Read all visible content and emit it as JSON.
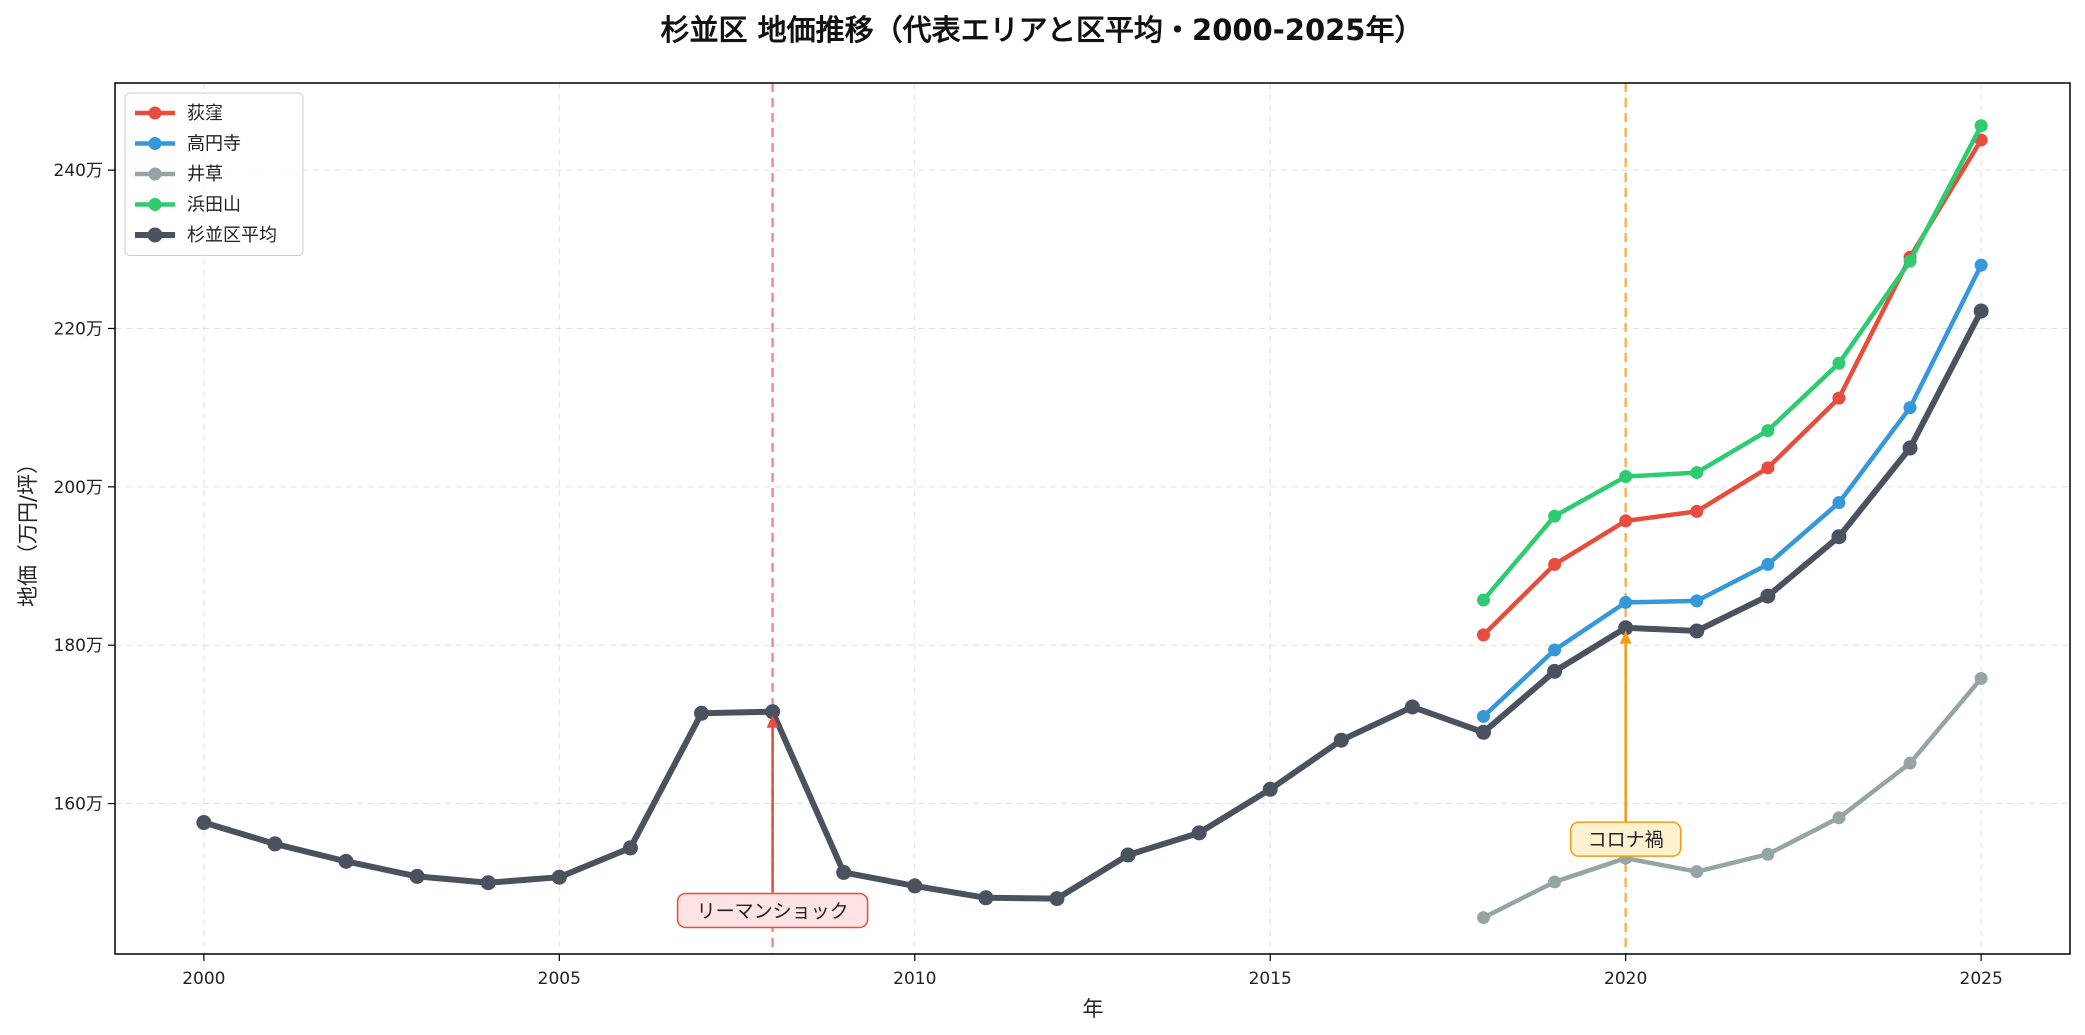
{
  "chart_data": {
    "type": "line",
    "title": "杉並区 地価推移（代表エリアと区平均・2000-2025年）",
    "xlabel": "年",
    "ylabel": "地価（万円/坪）",
    "xlim": [
      1998.75,
      2026.25
    ],
    "ylim": [
      1410000,
      2510000
    ],
    "x_ticks": [
      2000,
      2005,
      2010,
      2015,
      2020,
      2025
    ],
    "x_tick_labels": [
      "2000",
      "2005",
      "2010",
      "2015",
      "2020",
      "2025"
    ],
    "y_ticks": [
      1600000,
      1800000,
      2000000,
      2200000,
      2400000
    ],
    "y_tick_labels": [
      "160万",
      "180万",
      "200万",
      "220万",
      "240万"
    ],
    "grid": true,
    "legend_position": "top-left",
    "series": [
      {
        "name": "荻窪",
        "color": "#e74c3c",
        "x": [
          2018,
          2019,
          2020,
          2021,
          2022,
          2023,
          2024,
          2025
        ],
        "y": [
          1813000,
          1902000,
          1957000,
          1969000,
          2024000,
          2112000,
          2290000,
          2438000
        ]
      },
      {
        "name": "高円寺",
        "color": "#3498db",
        "x": [
          2018,
          2019,
          2020,
          2021,
          2022,
          2023,
          2024,
          2025
        ],
        "y": [
          1710000,
          1794000,
          1854000,
          1856000,
          1902000,
          1980000,
          2100000,
          2280000
        ]
      },
      {
        "name": "井草",
        "color": "#95a5a6",
        "x": [
          2018,
          2019,
          2020,
          2021,
          2022,
          2023,
          2024,
          2025
        ],
        "y": [
          1456000,
          1501000,
          1531000,
          1514000,
          1536000,
          1582000,
          1651000,
          1758000
        ]
      },
      {
        "name": "浜田山",
        "color": "#2ecc71",
        "x": [
          2018,
          2019,
          2020,
          2021,
          2022,
          2023,
          2024,
          2025
        ],
        "y": [
          1857000,
          1963000,
          2013000,
          2018000,
          2071000,
          2156000,
          2285000,
          2456000
        ]
      },
      {
        "name": "杉並区平均",
        "color": "#4a5260",
        "x": [
          2000,
          2001,
          2002,
          2003,
          2004,
          2005,
          2006,
          2007,
          2008,
          2009,
          2010,
          2011,
          2012,
          2013,
          2014,
          2015,
          2016,
          2017,
          2018,
          2019,
          2020,
          2021,
          2022,
          2023,
          2024,
          2025
        ],
        "y": [
          1576000,
          1549000,
          1527000,
          1508000,
          1500000,
          1507000,
          1544000,
          1714000,
          1716000,
          1513000,
          1496000,
          1481000,
          1480000,
          1535000,
          1563000,
          1618000,
          1680000,
          1722000,
          1690000,
          1767000,
          1822000,
          1818000,
          1862000,
          1937000,
          2049000,
          2222000
        ]
      }
    ],
    "annotations": [
      {
        "text": "リーマンショック",
        "x": 2008,
        "y": 1716000,
        "text_x": 2008,
        "text_y": 1465000,
        "line_color": "#f08080",
        "arrow_color": "#e74c3c",
        "box_fill": "#fde3e3",
        "box_stroke": "#e74c3c"
      },
      {
        "text": "コロナ禍",
        "x": 2020,
        "y": 1822000,
        "text_x": 2020,
        "text_y": 1555000,
        "line_color": "#f5b041",
        "arrow_color": "#f39c12",
        "box_fill": "#fdf2d0",
        "box_stroke": "#f39c12"
      }
    ]
  }
}
